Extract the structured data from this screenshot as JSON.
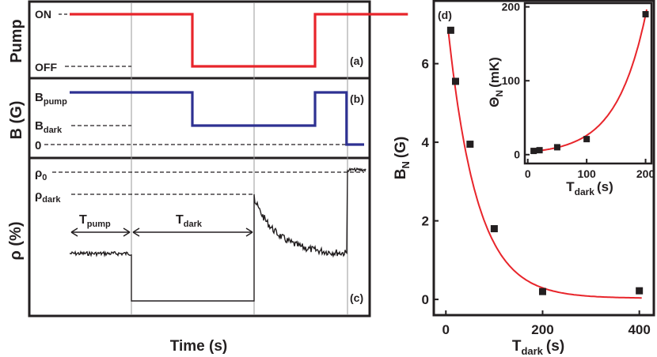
{
  "chart_data": [
    {
      "type": "line",
      "panel": "(a)",
      "ylabel": "Pump",
      "levels": [
        "ON",
        "OFF"
      ],
      "x": [
        0,
        70,
        70,
        140,
        140,
        193
      ],
      "state": [
        "ON",
        "ON",
        "OFF",
        "OFF",
        "ON",
        "ON"
      ],
      "series_color": "#e8252b"
    },
    {
      "type": "line",
      "panel": "(b)",
      "ylabel": "B (G)",
      "levels": [
        "B",
        "B",
        "0"
      ],
      "level_subscripts": [
        "pump",
        "dark",
        ""
      ],
      "x": [
        0,
        70,
        70,
        140,
        140,
        158,
        158,
        168
      ],
      "level_index": [
        0,
        0,
        1,
        1,
        0,
        0,
        2,
        2
      ],
      "series_color": "#2e3192"
    },
    {
      "type": "line",
      "panel": "(c)",
      "ylabel": "ρ (%)",
      "xlabel": "Time (s)",
      "levels": [
        "ρ",
        "ρ"
      ],
      "level_subscripts": [
        "0",
        "dark"
      ],
      "annotations": [
        {
          "text": "T",
          "subscript": "pump"
        },
        {
          "text": "T",
          "subscript": "dark"
        }
      ],
      "series_color": "#231f20"
    },
    {
      "type": "scatter",
      "panel": "(d)",
      "xlabel": "T",
      "xlabel_subscript": "dark",
      "xlabel_unit": "(s)",
      "ylabel": "B",
      "ylabel_subscript": "N",
      "ylabel_unit": "(G)",
      "x": [
        10,
        20,
        50,
        100,
        200,
        400
      ],
      "y": [
        6.85,
        5.55,
        3.95,
        1.8,
        0.2,
        0.22
      ],
      "fit": {
        "form": "exponential",
        "A": 7.4,
        "tau": 60,
        "C": 0.03,
        "color": "#e8252b"
      },
      "xlim": [
        -25,
        430
      ],
      "ylim": [
        -0.4,
        7.6
      ],
      "xticks": [
        0,
        200,
        400
      ],
      "yticks": [
        0,
        2,
        4,
        6
      ]
    },
    {
      "type": "scatter",
      "panel": "(d) inset",
      "xlabel": "T",
      "xlabel_subscript": "dark",
      "xlabel_unit": "(s)",
      "ylabel": "Θ",
      "ylabel_subscript": "N",
      "ylabel_unit": "(mK)",
      "x": [
        10,
        20,
        50,
        100,
        200
      ],
      "y": [
        5,
        6,
        10,
        21,
        190
      ],
      "fit": {
        "form": "exponential",
        "A": 3.6,
        "b": 0.0198,
        "C": 0,
        "color": "#e8252b"
      },
      "xlim": [
        -5,
        210
      ],
      "ylim": [
        -12,
        205
      ],
      "xticks": [
        0,
        100,
        200
      ],
      "yticks": [
        0,
        100,
        200
      ]
    }
  ]
}
